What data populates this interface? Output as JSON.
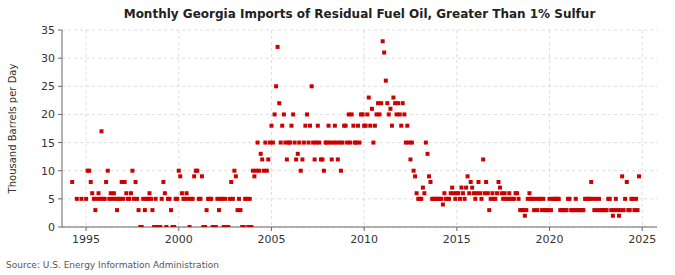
{
  "chart_data": {
    "type": "scatter",
    "title": "Monthly Georgia Imports of Residual Fuel Oil, Greater Than 1% Sulfur",
    "ylabel": "Thousand Barrels per Day",
    "source": "Source: U.S. Energy Information Administration",
    "color": "#CC0000",
    "marker": "square",
    "grid": true,
    "xlim": [
      1993.7,
      2025.8
    ],
    "xticks": [
      1995,
      2000,
      2005,
      2010,
      2015,
      2020,
      2025
    ],
    "ylim": [
      0,
      35
    ],
    "yticks": [
      0,
      5,
      10,
      15,
      20,
      25,
      30,
      35
    ],
    "x": [
      1994.25,
      1994.5,
      1994.75,
      1995.0,
      1995.08,
      1995.17,
      1995.25,
      1995.33,
      1995.42,
      1995.5,
      1995.58,
      1995.67,
      1995.75,
      1995.83,
      1995.92,
      1996.0,
      1996.08,
      1996.17,
      1996.25,
      1996.33,
      1996.42,
      1996.5,
      1996.58,
      1996.67,
      1996.75,
      1996.83,
      1996.92,
      1997.0,
      1997.08,
      1997.17,
      1997.25,
      1997.33,
      1997.42,
      1997.5,
      1997.58,
      1997.67,
      1997.75,
      1997.83,
      1997.92,
      1998.0,
      1998.08,
      1998.17,
      1998.25,
      1998.33,
      1998.42,
      1998.5,
      1998.58,
      1998.67,
      1998.75,
      1998.83,
      1998.92,
      1999.0,
      1999.08,
      1999.17,
      1999.25,
      1999.33,
      1999.42,
      1999.5,
      1999.58,
      1999.67,
      1999.75,
      1999.83,
      1999.92,
      2000.0,
      2000.08,
      2000.17,
      2000.25,
      2000.33,
      2000.42,
      2000.5,
      2000.58,
      2000.67,
      2000.75,
      2000.83,
      2000.92,
      2001.0,
      2001.08,
      2001.17,
      2001.25,
      2001.33,
      2001.42,
      2001.5,
      2001.58,
      2001.67,
      2001.75,
      2001.83,
      2001.92,
      2002.0,
      2002.08,
      2002.17,
      2002.25,
      2002.33,
      2002.42,
      2002.5,
      2002.58,
      2002.67,
      2002.75,
      2002.83,
      2002.92,
      2003.0,
      2003.08,
      2003.17,
      2003.25,
      2003.33,
      2003.42,
      2003.5,
      2003.58,
      2003.67,
      2003.75,
      2003.83,
      2003.92,
      2004.0,
      2004.08,
      2004.17,
      2004.25,
      2004.33,
      2004.42,
      2004.5,
      2004.58,
      2004.67,
      2004.75,
      2004.83,
      2004.92,
      2005.0,
      2005.08,
      2005.17,
      2005.25,
      2005.33,
      2005.42,
      2005.5,
      2005.58,
      2005.67,
      2005.75,
      2005.83,
      2005.92,
      2006.0,
      2006.08,
      2006.17,
      2006.25,
      2006.33,
      2006.42,
      2006.5,
      2006.58,
      2006.67,
      2006.75,
      2006.83,
      2006.92,
      2007.0,
      2007.08,
      2007.17,
      2007.25,
      2007.33,
      2007.42,
      2007.5,
      2007.58,
      2007.67,
      2007.75,
      2007.83,
      2007.92,
      2008.0,
      2008.08,
      2008.17,
      2008.25,
      2008.33,
      2008.42,
      2008.5,
      2008.58,
      2008.67,
      2008.75,
      2008.83,
      2008.92,
      2009.0,
      2009.08,
      2009.17,
      2009.25,
      2009.33,
      2009.42,
      2009.5,
      2009.58,
      2009.67,
      2009.75,
      2009.83,
      2009.92,
      2010.0,
      2010.08,
      2010.17,
      2010.25,
      2010.33,
      2010.42,
      2010.5,
      2010.58,
      2010.67,
      2010.75,
      2010.83,
      2010.92,
      2011.0,
      2011.08,
      2011.17,
      2011.25,
      2011.33,
      2011.42,
      2011.5,
      2011.58,
      2011.67,
      2011.75,
      2011.83,
      2011.92,
      2012.0,
      2012.08,
      2012.17,
      2012.25,
      2012.33,
      2012.42,
      2012.5,
      2012.58,
      2012.67,
      2012.75,
      2012.83,
      2012.92,
      2013.0,
      2013.08,
      2013.17,
      2013.25,
      2013.33,
      2013.42,
      2013.5,
      2013.58,
      2013.67,
      2013.75,
      2013.83,
      2013.92,
      2014.0,
      2014.08,
      2014.17,
      2014.25,
      2014.33,
      2014.42,
      2014.5,
      2014.58,
      2014.67,
      2014.75,
      2014.83,
      2014.92,
      2015.0,
      2015.08,
      2015.17,
      2015.25,
      2015.33,
      2015.42,
      2015.5,
      2015.58,
      2015.67,
      2015.75,
      2015.83,
      2015.92,
      2016.0,
      2016.08,
      2016.17,
      2016.25,
      2016.33,
      2016.42,
      2016.5,
      2016.58,
      2016.67,
      2016.75,
      2016.83,
      2016.92,
      2017.0,
      2017.08,
      2017.17,
      2017.25,
      2017.33,
      2017.42,
      2017.5,
      2017.58,
      2017.67,
      2017.75,
      2017.83,
      2017.92,
      2018.0,
      2018.08,
      2018.17,
      2018.25,
      2018.33,
      2018.42,
      2018.5,
      2018.58,
      2018.67,
      2018.75,
      2018.83,
      2018.92,
      2019.0,
      2019.08,
      2019.17,
      2019.25,
      2019.33,
      2019.42,
      2019.5,
      2019.58,
      2019.67,
      2019.75,
      2019.83,
      2019.92,
      2020.0,
      2020.08,
      2020.17,
      2020.25,
      2020.33,
      2020.42,
      2020.5,
      2020.58,
      2020.67,
      2020.75,
      2020.83,
      2020.92,
      2021.0,
      2021.08,
      2021.17,
      2021.25,
      2021.33,
      2021.42,
      2021.5,
      2021.58,
      2021.67,
      2021.75,
      2021.83,
      2021.92,
      2022.0,
      2022.08,
      2022.17,
      2022.25,
      2022.33,
      2022.42,
      2022.5,
      2022.58,
      2022.67,
      2022.75,
      2022.83,
      2022.92,
      2023.0,
      2023.08,
      2023.17,
      2023.25,
      2023.33,
      2023.42,
      2023.5,
      2023.58,
      2023.67,
      2023.75,
      2023.83,
      2023.92,
      2024.0,
      2024.08,
      2024.17,
      2024.25,
      2024.33,
      2024.42,
      2024.5,
      2024.58,
      2024.67,
      2024.75,
      2024.83
    ],
    "values": [
      8,
      5,
      5,
      5,
      10,
      10,
      8,
      6,
      5,
      3,
      5,
      6,
      5,
      17,
      5,
      5,
      8,
      10,
      5,
      6,
      5,
      6,
      5,
      3,
      5,
      5,
      8,
      5,
      8,
      6,
      5,
      5,
      6,
      10,
      5,
      8,
      5,
      3,
      0,
      0,
      5,
      3,
      5,
      5,
      6,
      5,
      3,
      0,
      5,
      0,
      0,
      0,
      5,
      8,
      6,
      0,
      5,
      5,
      3,
      0,
      0,
      5,
      5,
      10,
      9,
      6,
      5,
      5,
      6,
      5,
      0,
      5,
      5,
      9,
      10,
      10,
      5,
      5,
      9,
      0,
      0,
      3,
      5,
      5,
      5,
      0,
      0,
      0,
      5,
      3,
      5,
      5,
      0,
      5,
      0,
      0,
      5,
      8,
      5,
      10,
      9,
      3,
      5,
      3,
      0,
      0,
      5,
      5,
      0,
      5,
      0,
      10,
      9,
      10,
      15,
      10,
      13,
      12,
      10,
      15,
      10,
      12,
      15,
      18,
      15,
      20,
      25,
      32,
      22,
      15,
      18,
      20,
      15,
      12,
      15,
      15,
      18,
      20,
      15,
      12,
      13,
      15,
      10,
      12,
      15,
      18,
      20,
      15,
      18,
      25,
      15,
      12,
      15,
      18,
      15,
      12,
      12,
      10,
      15,
      15,
      18,
      15,
      12,
      15,
      18,
      15,
      12,
      15,
      10,
      15,
      18,
      18,
      15,
      20,
      15,
      20,
      18,
      15,
      15,
      18,
      15,
      20,
      20,
      18,
      18,
      20,
      23,
      18,
      21,
      15,
      18,
      20,
      22,
      20,
      22,
      33,
      31,
      26,
      22,
      20,
      21,
      18,
      23,
      22,
      20,
      22,
      20,
      18,
      22,
      20,
      15,
      18,
      15,
      12,
      15,
      10,
      9,
      6,
      5,
      5,
      5,
      7,
      6,
      15,
      13,
      9,
      8,
      5,
      5,
      5,
      5,
      5,
      5,
      5,
      4,
      6,
      5,
      5,
      5,
      6,
      7,
      6,
      5,
      6,
      6,
      5,
      7,
      6,
      5,
      7,
      9,
      6,
      8,
      7,
      6,
      5,
      6,
      8,
      6,
      5,
      12,
      6,
      8,
      6,
      3,
      5,
      6,
      5,
      5,
      6,
      8,
      7,
      6,
      5,
      6,
      5,
      5,
      6,
      5,
      5,
      5,
      6,
      6,
      5,
      3,
      3,
      3,
      2,
      3,
      5,
      6,
      5,
      5,
      3,
      5,
      3,
      5,
      5,
      3,
      5,
      3,
      3,
      3,
      5,
      3,
      5,
      5,
      5,
      5,
      5,
      3,
      3,
      3,
      3,
      3,
      5,
      5,
      3,
      3,
      3,
      5,
      3,
      3,
      3,
      3,
      3,
      5,
      5,
      5,
      5,
      8,
      5,
      3,
      5,
      3,
      5,
      3,
      3,
      3,
      3,
      3,
      5,
      5,
      3,
      2,
      3,
      5,
      3,
      2,
      3,
      9,
      3,
      5,
      8,
      3,
      3,
      5,
      5,
      3,
      5,
      3,
      9
    ]
  }
}
